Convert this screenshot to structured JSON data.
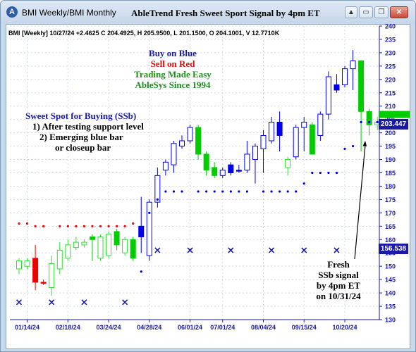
{
  "window": {
    "title": "BMI Weekly/BMI Monthly",
    "app_icon": "A",
    "chart_title": "AbleTrend Fresh Sweet Sport Signal by 4pm ET",
    "buttons": [
      {
        "name": "collapse-button",
        "glyph": "▲"
      },
      {
        "name": "minimize-button",
        "glyph": "▭"
      },
      {
        "name": "maximize-button",
        "glyph": "❐"
      },
      {
        "name": "close-button",
        "glyph": "✕"
      }
    ]
  },
  "info_line": "BMI [Weekly] 10/27/24 +2.4625 C 204.4925, H 205.9500, L 201.1500, O 204.1001, V 12.7710K",
  "legend": [
    {
      "text": "Buy on Blue",
      "color": "#1a1aa6"
    },
    {
      "text": "Sell on Red",
      "color": "#e01010"
    },
    {
      "text": "Trading Made Easy",
      "color": "#1f8f1f"
    },
    {
      "text": "AbleSys Since 1994",
      "color": "#1f8f1f"
    }
  ],
  "sweet_spot": {
    "title": "Sweet Spot for Buying (SSb)",
    "lines": [
      "1) After testing support level",
      "2) Emerging blue bar",
      "or closeup bar"
    ]
  },
  "fresh_note": [
    "Fresh",
    "SSb signal",
    "by 4pm ET",
    "on 10/31/24"
  ],
  "price_badges": {
    "current": "203.447",
    "stop": "156.538"
  },
  "colors": {
    "buy": "#0000ee",
    "sell": "#ee0000",
    "neutral_up": "#33dd33",
    "neutral_down": "#00cc00",
    "axis": "#1a1aa6"
  },
  "chart_data": {
    "type": "candlestick",
    "ylim": [
      130,
      240
    ],
    "y_ticks": [
      130,
      135,
      140,
      145,
      150,
      155,
      160,
      165,
      170,
      175,
      180,
      185,
      190,
      195,
      200,
      205,
      210,
      215,
      220,
      225,
      230,
      235,
      240
    ],
    "x_tick_labels": [
      "01/14/24",
      "02/18/24",
      "03/24/24",
      "04/28/24",
      "06/01/24",
      "07/01/24",
      "08/04/24",
      "09/15/24",
      "10/20/24"
    ],
    "x_tick_index": [
      1,
      6,
      11,
      16,
      21,
      25,
      30,
      35,
      40
    ],
    "candles": [
      {
        "o": 149,
        "h": 153,
        "l": 147,
        "c": 152,
        "t": "g"
      },
      {
        "o": 150,
        "h": 153,
        "l": 149,
        "c": 152,
        "t": "g"
      },
      {
        "o": 153,
        "h": 158,
        "l": 141,
        "c": 144,
        "t": "r"
      },
      {
        "o": 144,
        "h": 145,
        "l": 143,
        "c": 144,
        "t": "r"
      },
      {
        "o": 142,
        "h": 154,
        "l": 139,
        "c": 151,
        "t": "g"
      },
      {
        "o": 149,
        "h": 159,
        "l": 147,
        "c": 156,
        "t": "g"
      },
      {
        "o": 153,
        "h": 160,
        "l": 152,
        "c": 158,
        "t": "g"
      },
      {
        "o": 157,
        "h": 161,
        "l": 156,
        "c": 159,
        "t": "g"
      },
      {
        "o": 158,
        "h": 160,
        "l": 157,
        "c": 159,
        "t": "g"
      },
      {
        "o": 160,
        "h": 162,
        "l": 152,
        "c": 161,
        "t": "G"
      },
      {
        "o": 153,
        "h": 162,
        "l": 152,
        "c": 161,
        "t": "g"
      },
      {
        "o": 154,
        "h": 163,
        "l": 153,
        "c": 162,
        "t": "g"
      },
      {
        "o": 163,
        "h": 164,
        "l": 156,
        "c": 158,
        "t": "G"
      },
      {
        "o": 155,
        "h": 161,
        "l": 154,
        "c": 160,
        "t": "g"
      },
      {
        "o": 160,
        "h": 161,
        "l": 152,
        "c": 153,
        "t": "G"
      },
      {
        "o": 161,
        "h": 176,
        "l": 155,
        "c": 165,
        "t": "B"
      },
      {
        "o": 154,
        "h": 175,
        "l": 152,
        "c": 174,
        "t": "b"
      },
      {
        "o": 174,
        "h": 187,
        "l": 172,
        "c": 184,
        "t": "b"
      },
      {
        "o": 186,
        "h": 190,
        "l": 184,
        "c": 189,
        "t": "b"
      },
      {
        "o": 188,
        "h": 197,
        "l": 185,
        "c": 196,
        "t": "b"
      },
      {
        "o": 195,
        "h": 199,
        "l": 194,
        "c": 197,
        "t": "b"
      },
      {
        "o": 197,
        "h": 203,
        "l": 196,
        "c": 202,
        "t": "b"
      },
      {
        "o": 202,
        "h": 203,
        "l": 190,
        "c": 192,
        "t": "G"
      },
      {
        "o": 192,
        "h": 193,
        "l": 184,
        "c": 186,
        "t": "G"
      },
      {
        "o": 187,
        "h": 189,
        "l": 183,
        "c": 184,
        "t": "G"
      },
      {
        "o": 184,
        "h": 187,
        "l": 183,
        "c": 186,
        "t": "b"
      },
      {
        "o": 185,
        "h": 189,
        "l": 184,
        "c": 188,
        "t": "B"
      },
      {
        "o": 186,
        "h": 188,
        "l": 185,
        "c": 186,
        "t": "B"
      },
      {
        "o": 186,
        "h": 197,
        "l": 185,
        "c": 192,
        "t": "b"
      },
      {
        "o": 190,
        "h": 196,
        "l": 181,
        "c": 195,
        "t": "b"
      },
      {
        "o": 194,
        "h": 201,
        "l": 185,
        "c": 199,
        "t": "b"
      },
      {
        "o": 197,
        "h": 206,
        "l": 196,
        "c": 204,
        "t": "b"
      },
      {
        "o": 204,
        "h": 208,
        "l": 193,
        "c": 199,
        "t": "B"
      },
      {
        "o": 187,
        "h": 191,
        "l": 184,
        "c": 190,
        "t": "g"
      },
      {
        "o": 191,
        "h": 203,
        "l": 190,
        "c": 202,
        "t": "b"
      },
      {
        "o": 202,
        "h": 206,
        "l": 193,
        "c": 204,
        "t": "b"
      },
      {
        "o": 203,
        "h": 204,
        "l": 192,
        "c": 192,
        "t": "G"
      },
      {
        "o": 199,
        "h": 208,
        "l": 197,
        "c": 207,
        "t": "b"
      },
      {
        "o": 207,
        "h": 223,
        "l": 205,
        "c": 221,
        "t": "b"
      },
      {
        "o": 216,
        "h": 222,
        "l": 215,
        "c": 218,
        "t": "B"
      },
      {
        "o": 218,
        "h": 225,
        "l": 217,
        "c": 224,
        "t": "b"
      },
      {
        "o": 224,
        "h": 231,
        "l": 216,
        "c": 227,
        "t": "b"
      },
      {
        "o": 227,
        "h": 227,
        "l": 193,
        "c": 208,
        "t": "G"
      },
      {
        "o": 208,
        "h": 209,
        "l": 199,
        "c": 203,
        "t": "G"
      },
      {
        "o": 203,
        "h": 206,
        "l": 201,
        "c": 204,
        "t": "g"
      }
    ],
    "resistance": [
      {
        "i": 0,
        "v": 166
      },
      {
        "i": 1,
        "v": 166
      },
      {
        "i": 2,
        "v": 165
      },
      {
        "i": 3,
        "v": 165
      },
      {
        "i": 5,
        "v": 165
      },
      {
        "i": 6,
        "v": 165
      },
      {
        "i": 7,
        "v": 165
      },
      {
        "i": 8,
        "v": 165
      },
      {
        "i": 9,
        "v": 165
      },
      {
        "i": 10,
        "v": 165
      },
      {
        "i": 11,
        "v": 165
      },
      {
        "i": 12,
        "v": 165
      },
      {
        "i": 13,
        "v": 165
      },
      {
        "i": 14,
        "v": 166
      }
    ],
    "support": [
      {
        "i": 15,
        "v": 148
      },
      {
        "i": 16,
        "v": 170
      },
      {
        "i": 17,
        "v": 175
      },
      {
        "i": 18,
        "v": 178
      },
      {
        "i": 19,
        "v": 178
      },
      {
        "i": 20,
        "v": 178
      },
      {
        "i": 22,
        "v": 178
      },
      {
        "i": 23,
        "v": 178
      },
      {
        "i": 24,
        "v": 178
      },
      {
        "i": 25,
        "v": 178
      },
      {
        "i": 26,
        "v": 178
      },
      {
        "i": 27,
        "v": 178
      },
      {
        "i": 28,
        "v": 178
      },
      {
        "i": 30,
        "v": 178
      },
      {
        "i": 31,
        "v": 178
      },
      {
        "i": 32,
        "v": 178
      },
      {
        "i": 33,
        "v": 178
      },
      {
        "i": 34,
        "v": 178
      },
      {
        "i": 35,
        "v": 181
      },
      {
        "i": 36,
        "v": 185
      },
      {
        "i": 37,
        "v": 185
      },
      {
        "i": 38,
        "v": 185
      },
      {
        "i": 39,
        "v": 185
      },
      {
        "i": 40,
        "v": 194
      },
      {
        "i": 41,
        "v": 195
      },
      {
        "i": 42,
        "v": 204
      },
      {
        "i": 43,
        "v": 204
      },
      {
        "i": 44,
        "v": 204
      }
    ],
    "x_markers": [
      {
        "i": 0,
        "v": 136.5
      },
      {
        "i": 4,
        "v": 136.5
      },
      {
        "i": 8,
        "v": 136.5
      },
      {
        "i": 13,
        "v": 136.5
      },
      {
        "i": 17,
        "v": 156
      },
      {
        "i": 21,
        "v": 156
      },
      {
        "i": 26,
        "v": 156
      },
      {
        "i": 31,
        "v": 156
      },
      {
        "i": 35,
        "v": 156
      },
      {
        "i": 39,
        "v": 156
      }
    ]
  }
}
